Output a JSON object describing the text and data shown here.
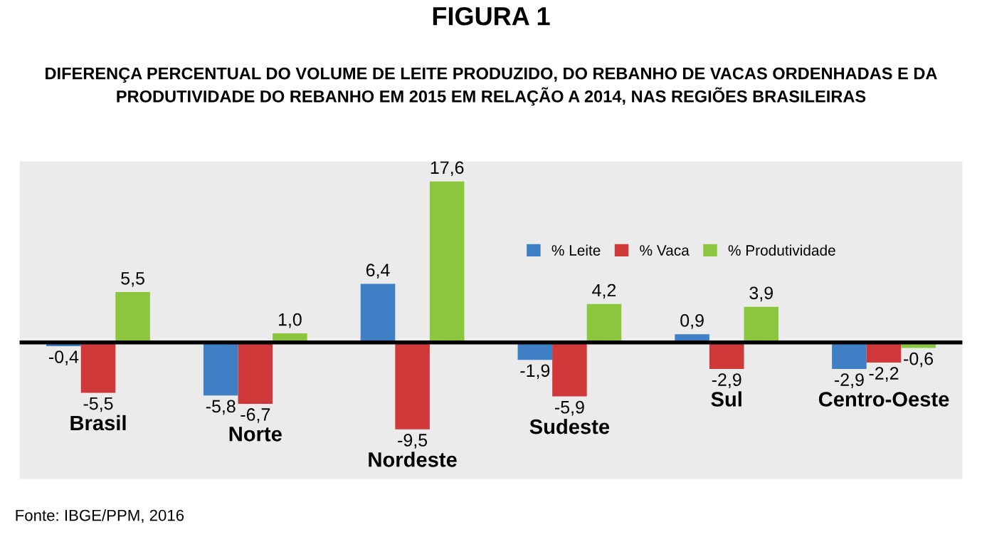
{
  "chart_data": {
    "type": "bar",
    "title": "FIGURA 1",
    "subtitle": "DIFERENÇA PERCENTUAL DO VOLUME DE LEITE PRODUZIDO, DO REBANHO DE VACAS ORDENHADAS E DA\nPRODUTIVIDADE DO REBANHO EM 2015 EM RELAÇÃO A 2014, NAS REGIÕES BRASILEIRAS",
    "categories": [
      "Brasil",
      "Norte",
      "Nordeste",
      "Sudeste",
      "Sul",
      "Centro-Oeste"
    ],
    "series": [
      {
        "name": "% Leite",
        "color": "#3f7fc6",
        "values": [
          -0.4,
          -5.8,
          6.4,
          -1.9,
          0.9,
          -2.9
        ],
        "value_labels": [
          "-0,4",
          "-5,8",
          "6,4",
          "-1,9",
          "0,9",
          "-2,9"
        ]
      },
      {
        "name": "% Vaca",
        "color": "#d0393a",
        "values": [
          -5.5,
          -6.7,
          -9.5,
          -5.9,
          -2.9,
          -2.2
        ],
        "value_labels": [
          "-5,5",
          "-6,7",
          "-9,5",
          "-5,9",
          "-2,9",
          "-2,2"
        ]
      },
      {
        "name": "% Produtividade",
        "color": "#8cc63e",
        "values": [
          5.5,
          1.0,
          17.6,
          4.2,
          3.9,
          -0.6
        ],
        "value_labels": [
          "5,5",
          "1,0",
          "17,6",
          "4,2",
          "3,9",
          "-0,6"
        ]
      }
    ],
    "legend": "top right",
    "annotations": [
      "Fonte: IBGE/PPM, 2016"
    ]
  }
}
